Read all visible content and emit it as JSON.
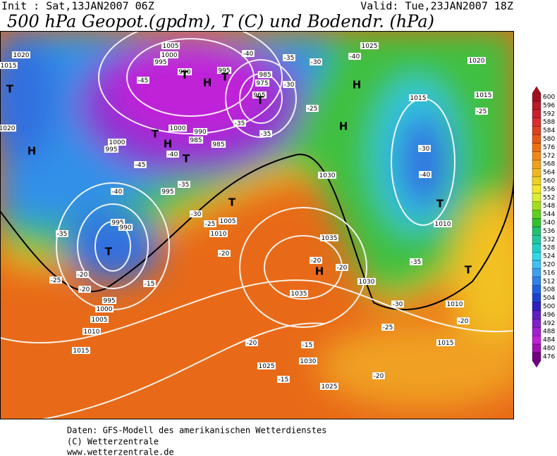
{
  "header": {
    "init": "Init : Sat,13JAN2007 06Z",
    "valid": "Valid: Tue,23JAN2007 18Z",
    "title": "500 hPa Geopot.(gpdm), T (C) und Bodendr. (hPa)"
  },
  "map": {
    "pressure_labels": [
      "1020",
      "1015",
      "1020",
      "1005",
      "1000",
      "995",
      "990",
      "995",
      "985",
      "975",
      "965",
      "1000",
      "990",
      "985",
      "985",
      "1000",
      "995",
      "995",
      "995",
      "990",
      "1005",
      "1010",
      "1030",
      "1035",
      "1030",
      "1035",
      "1025",
      "1020",
      "1015",
      "1015",
      "1010",
      "1010",
      "1015",
      "995",
      "1000",
      "1005",
      "1010",
      "1015",
      "1025",
      "1030",
      "1025"
    ],
    "temperature_labels": [
      "-40",
      "-35",
      "-30",
      "-40",
      "-45",
      "-30",
      "-25",
      "-35",
      "-35",
      "-45",
      "-40",
      "-35",
      "-40",
      "-35",
      "-30",
      "-25",
      "-20",
      "-25",
      "-30",
      "-40",
      "-35",
      "-20",
      "-20",
      "-15",
      "-20",
      "-25",
      "-20",
      "-30",
      "-25",
      "-20",
      "-20",
      "-15",
      "-15",
      "-20"
    ],
    "markers": [
      "T",
      "H",
      "H",
      "T",
      "T",
      "T",
      "H",
      "H",
      "T",
      "H",
      "T",
      "T",
      "T",
      "H",
      "T",
      "T"
    ]
  },
  "colorbar": {
    "ticks": [
      600,
      596,
      592,
      588,
      584,
      580,
      576,
      572,
      568,
      564,
      560,
      556,
      552,
      548,
      544,
      540,
      536,
      532,
      528,
      524,
      520,
      516,
      512,
      508,
      504,
      500,
      496,
      492,
      488,
      484,
      480,
      476
    ],
    "colors": [
      "#a01020",
      "#b81828",
      "#c82030",
      "#d83030",
      "#e04020",
      "#e85818",
      "#f07010",
      "#f08818",
      "#f0a020",
      "#f0b820",
      "#f0d020",
      "#f0e828",
      "#d8f030",
      "#a0e020",
      "#60d020",
      "#30c030",
      "#20c070",
      "#20c8a0",
      "#20d0c8",
      "#30d8e8",
      "#40c0f0",
      "#40a0f0",
      "#3080e8",
      "#2060e0",
      "#2040d0",
      "#3020c0",
      "#6020c0",
      "#8020c8",
      "#a020d0",
      "#c020d8",
      "#a010b0",
      "#700080"
    ]
  },
  "footer": {
    "line1": "Daten: GFS-Modell des amerikanischen Wetterdienstes",
    "line2": "(C) Wetterzentrale",
    "line3": "www.wetterzentrale.de"
  }
}
